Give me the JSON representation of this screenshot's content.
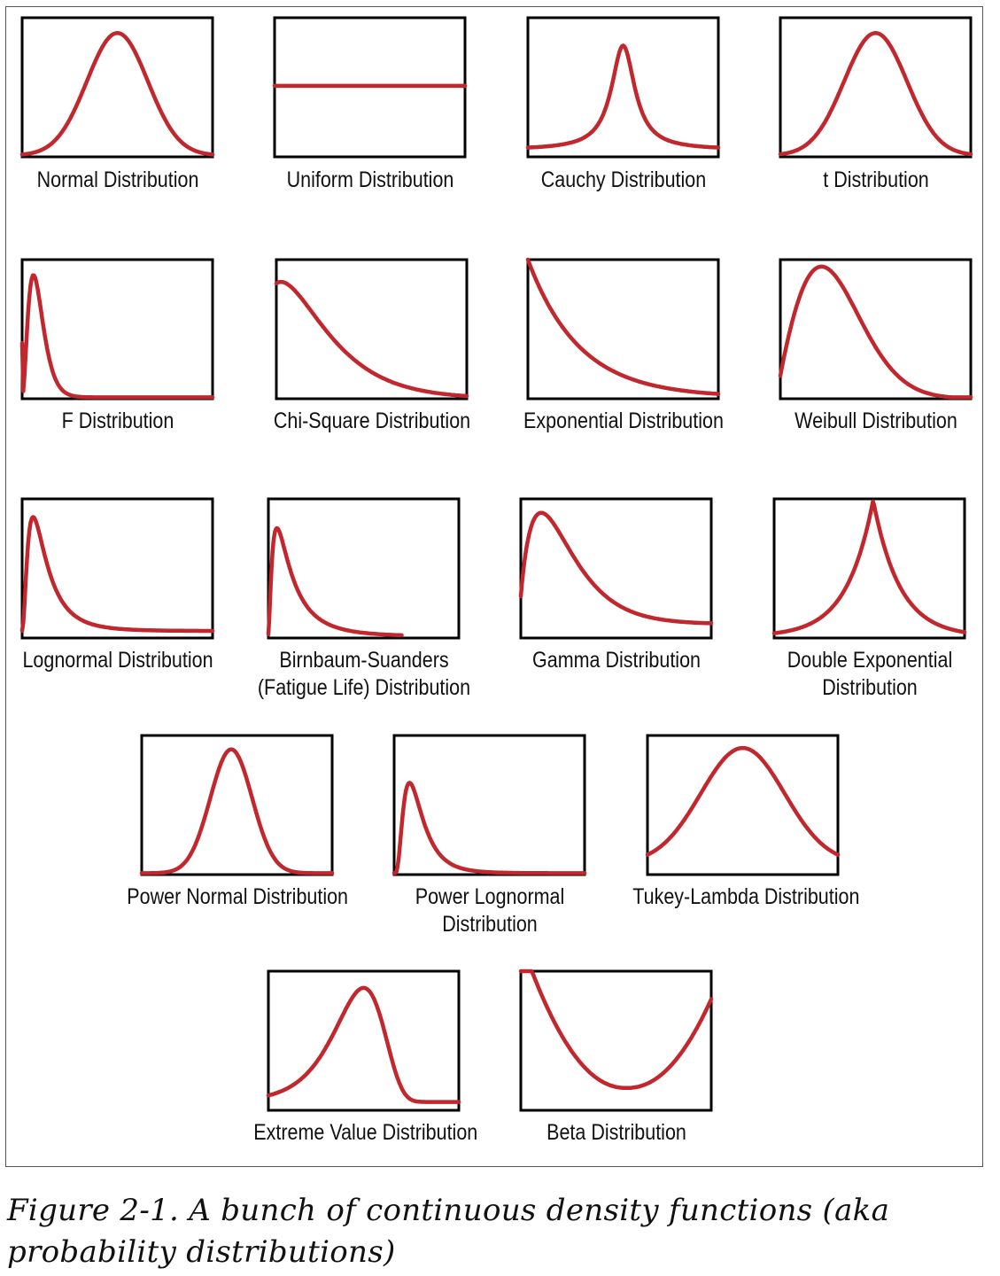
{
  "line_color": "#c1272d",
  "box_color": "#000000",
  "caption": "Figure 2-1. A bunch of continuous density functions (aka probability distributions)",
  "panels": [
    {
      "id": "normal",
      "label": [
        "Normal Distribution"
      ],
      "curve": "normal"
    },
    {
      "id": "uniform",
      "label": [
        "Uniform Distribution"
      ],
      "curve": "uniform"
    },
    {
      "id": "cauchy",
      "label": [
        "Cauchy Distribution"
      ],
      "curve": "cauchy"
    },
    {
      "id": "t",
      "label": [
        "t Distribution"
      ],
      "curve": "t"
    },
    {
      "id": "f",
      "label": [
        "F Distribution"
      ],
      "curve": "f"
    },
    {
      "id": "chi-square",
      "label": [
        "Chi-Square Distribution"
      ],
      "curve": "chi-square"
    },
    {
      "id": "exponential",
      "label": [
        "Exponential Distribution"
      ],
      "curve": "exponential"
    },
    {
      "id": "weibull",
      "label": [
        "Weibull Distribution"
      ],
      "curve": "weibull"
    },
    {
      "id": "lognormal",
      "label": [
        "Lognormal Distribution"
      ],
      "curve": "lognormal"
    },
    {
      "id": "birnbaum-saunders",
      "label": [
        "Birnbaum-Suanders",
        "(Fatigue Life) Distribution"
      ],
      "curve": "birnbaum-saunders"
    },
    {
      "id": "gamma",
      "label": [
        "Gamma Distribution"
      ],
      "curve": "gamma"
    },
    {
      "id": "double-exponential",
      "label": [
        "Double Exponential",
        "Distribution"
      ],
      "curve": "double-exponential"
    },
    {
      "id": "power-normal",
      "label": [
        "Power Normal Distribution"
      ],
      "curve": "power-normal"
    },
    {
      "id": "power-lognormal",
      "label": [
        "Power Lognormal",
        "Distribution"
      ],
      "curve": "power-lognormal"
    },
    {
      "id": "tukey-lambda",
      "label": [
        "Tukey-Lambda Distribution"
      ],
      "curve": "tukey-lambda"
    },
    {
      "id": "extreme-value",
      "label": [
        "Extreme Value Distribution"
      ],
      "curve": "extreme-value"
    },
    {
      "id": "beta",
      "label": [
        "Beta Distribution"
      ],
      "curve": "beta"
    }
  ]
}
